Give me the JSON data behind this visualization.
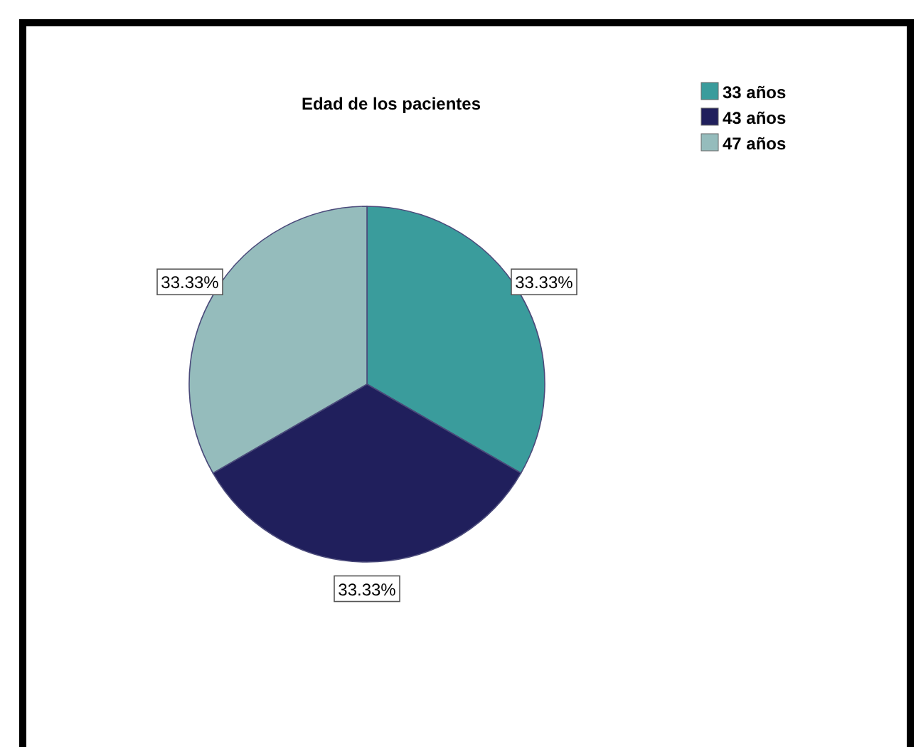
{
  "chart_data": {
    "type": "pie",
    "title": "Edad de los pacientes",
    "categories": [
      "33 años",
      "43 años",
      "47 años"
    ],
    "values": [
      33.33,
      33.33,
      33.33
    ],
    "value_labels": [
      "33.33%",
      "33.33%",
      "33.33%"
    ],
    "colors": [
      "#3a9c9c",
      "#201f5c",
      "#95bcbc"
    ],
    "legend": "top right"
  }
}
